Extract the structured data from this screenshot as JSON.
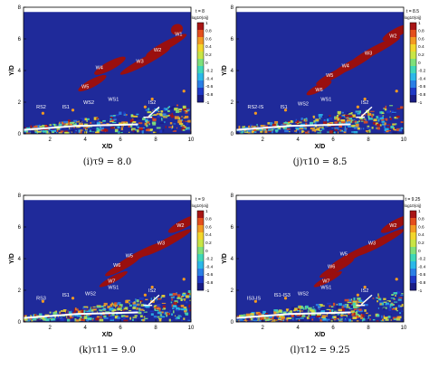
{
  "figure": {
    "panels": [
      {
        "caption": "(i)τ9 = 8.0",
        "time_label": "t = 8",
        "colorbar_title": "log10(σij)",
        "colorbar_ticks": [
          "1",
          "0.8",
          "0.6",
          "0.4",
          "0.2",
          "0",
          "-0.2",
          "-0.4",
          "-0.6",
          "-0.8",
          "-1"
        ],
        "xlabel": "X/D",
        "ylabel": "Y/D",
        "xticks": [
          "2",
          "4",
          "6",
          "8",
          "10"
        ],
        "yticks": [
          "0",
          "2",
          "4",
          "6",
          "8"
        ],
        "labels": [
          {
            "text": "W1",
            "x": 9.3,
            "y": 6.2
          },
          {
            "text": "W2",
            "x": 8.1,
            "y": 5.2
          },
          {
            "text": "W3",
            "x": 7.1,
            "y": 4.5
          },
          {
            "text": "W4",
            "x": 4.8,
            "y": 4.1
          },
          {
            "text": "W5",
            "x": 4.0,
            "y": 2.9
          },
          {
            "text": "RS2",
            "x": 1.5,
            "y": 1.6
          },
          {
            "text": "IS1",
            "x": 2.9,
            "y": 1.6
          },
          {
            "text": "WS2",
            "x": 4.2,
            "y": 1.9
          },
          {
            "text": "WS1",
            "x": 5.6,
            "y": 2.1
          },
          {
            "text": "IS2",
            "x": 7.8,
            "y": 1.9
          }
        ]
      },
      {
        "caption": "(j)τ10 = 8.5",
        "time_label": "t = 8.5",
        "colorbar_title": "log10(σij)",
        "colorbar_ticks": [
          "1",
          "0.8",
          "0.6",
          "0.4",
          "0.2",
          "0",
          "-0.2",
          "-0.4",
          "-0.6",
          "-0.8",
          "-1"
        ],
        "xlabel": "X/D",
        "ylabel": "Y/D",
        "xticks": [
          "2",
          "4",
          "6",
          "8",
          "10"
        ],
        "yticks": [
          "0",
          "2",
          "4",
          "6",
          "8"
        ],
        "labels": [
          {
            "text": "W2",
            "x": 9.4,
            "y": 6.1
          },
          {
            "text": "W3",
            "x": 8.0,
            "y": 5.0
          },
          {
            "text": "W4",
            "x": 6.7,
            "y": 4.2
          },
          {
            "text": "W5",
            "x": 5.8,
            "y": 3.6
          },
          {
            "text": "W6",
            "x": 5.2,
            "y": 2.7
          },
          {
            "text": "RS2-IS",
            "x": 1.6,
            "y": 1.6
          },
          {
            "text": "IS1",
            "x": 3.2,
            "y": 1.6
          },
          {
            "text": "WS2",
            "x": 4.3,
            "y": 1.8
          },
          {
            "text": "WS1",
            "x": 5.6,
            "y": 2.1
          },
          {
            "text": "IS2",
            "x": 7.8,
            "y": 1.9
          }
        ]
      },
      {
        "caption": "(k)τ11 = 9.0",
        "time_label": "t = 9",
        "colorbar_title": "log10(σij)",
        "colorbar_ticks": [
          "1",
          "0.8",
          "0.6",
          "0.4",
          "0.2",
          "0",
          "-0.2",
          "-0.4",
          "-0.6",
          "-0.8",
          "-1"
        ],
        "xlabel": "X/D",
        "ylabel": "Y/D",
        "xticks": [
          "2",
          "4",
          "6",
          "8",
          "10"
        ],
        "yticks": [
          "0",
          "2",
          "4",
          "6",
          "8"
        ],
        "labels": [
          {
            "text": "W2",
            "x": 9.4,
            "y": 6.0
          },
          {
            "text": "W3",
            "x": 8.3,
            "y": 4.9
          },
          {
            "text": "W5",
            "x": 6.5,
            "y": 4.1
          },
          {
            "text": "W6",
            "x": 5.8,
            "y": 3.5
          },
          {
            "text": "W7",
            "x": 5.5,
            "y": 2.5
          },
          {
            "text": "RS3",
            "x": 1.5,
            "y": 1.4
          },
          {
            "text": "IS1",
            "x": 2.9,
            "y": 1.6
          },
          {
            "text": "WS2",
            "x": 4.3,
            "y": 1.7
          },
          {
            "text": "WS1",
            "x": 5.6,
            "y": 2.1
          },
          {
            "text": "IS2",
            "x": 7.8,
            "y": 1.9
          }
        ]
      },
      {
        "caption": "(l)τ12 = 9.25",
        "time_label": "t = 9.25",
        "colorbar_title": "log10(σij)",
        "colorbar_ticks": [
          "1",
          "0.8",
          "0.6",
          "0.4",
          "0.2",
          "0",
          "-0.2",
          "-0.4",
          "-0.6",
          "-0.8",
          "-1"
        ],
        "xlabel": "X/D",
        "ylabel": "Y/D",
        "xticks": [
          "2",
          "4",
          "6",
          "8",
          "10"
        ],
        "yticks": [
          "0",
          "2",
          "4",
          "6",
          "8"
        ],
        "labels": [
          {
            "text": "W2",
            "x": 9.4,
            "y": 6.0
          },
          {
            "text": "W3",
            "x": 8.2,
            "y": 4.9
          },
          {
            "text": "W5",
            "x": 6.6,
            "y": 4.2
          },
          {
            "text": "W6",
            "x": 5.9,
            "y": 3.4
          },
          {
            "text": "W7",
            "x": 5.6,
            "y": 2.5
          },
          {
            "text": "IS3-IS",
            "x": 1.5,
            "y": 1.4
          },
          {
            "text": "IS1-IS3",
            "x": 3.1,
            "y": 1.6
          },
          {
            "text": "WS2",
            "x": 4.3,
            "y": 1.7
          },
          {
            "text": "WS1",
            "x": 5.6,
            "y": 2.1
          },
          {
            "text": "IS2",
            "x": 7.8,
            "y": 1.9
          }
        ]
      }
    ]
  },
  "chart_data": [
    {
      "type": "heatmap",
      "title": "",
      "xlabel": "X/D",
      "ylabel": "Y/D",
      "xlim": [
        0.5,
        10
      ],
      "ylim": [
        0,
        8
      ],
      "colorbar": {
        "title": "log10(σij)",
        "range": [
          -1,
          1
        ],
        "ticks": [
          1,
          0.8,
          0.6,
          0.4,
          0.2,
          0,
          -0.2,
          -0.4,
          -0.6,
          -0.8,
          -1
        ]
      },
      "time": 8,
      "tau": "τ9",
      "annotations": [
        "W1",
        "W2",
        "W3",
        "W4",
        "W5",
        "RS2",
        "IS1",
        "WS2",
        "WS1",
        "IS2"
      ]
    },
    {
      "type": "heatmap",
      "title": "",
      "xlabel": "X/D",
      "ylabel": "Y/D",
      "xlim": [
        0.5,
        10
      ],
      "ylim": [
        0,
        8
      ],
      "colorbar": {
        "title": "log10(σij)",
        "range": [
          -1,
          1
        ],
        "ticks": [
          1,
          0.8,
          0.6,
          0.4,
          0.2,
          0,
          -0.2,
          -0.4,
          -0.6,
          -0.8,
          -1
        ]
      },
      "time": 8.5,
      "tau": "τ10",
      "annotations": [
        "W2",
        "W3",
        "W4",
        "W5",
        "W6",
        "RS2-IS",
        "IS1",
        "WS2",
        "WS1",
        "IS2"
      ]
    },
    {
      "type": "heatmap",
      "title": "",
      "xlabel": "X/D",
      "ylabel": "Y/D",
      "xlim": [
        0.5,
        10
      ],
      "ylim": [
        0,
        8
      ],
      "colorbar": {
        "title": "log10(σij)",
        "range": [
          -1,
          1
        ],
        "ticks": [
          1,
          0.8,
          0.6,
          0.4,
          0.2,
          0,
          -0.2,
          -0.4,
          -0.6,
          -0.8,
          -1
        ]
      },
      "time": 9,
      "tau": "τ11",
      "annotations": [
        "W2",
        "W3",
        "W5",
        "W6",
        "W7",
        "RS3",
        "IS1",
        "WS2",
        "WS1",
        "IS2"
      ]
    },
    {
      "type": "heatmap",
      "title": "",
      "xlabel": "X/D",
      "ylabel": "Y/D",
      "xlim": [
        0.5,
        10
      ],
      "ylim": [
        0,
        8
      ],
      "colorbar": {
        "title": "log10(σij)",
        "range": [
          -1,
          1
        ],
        "ticks": [
          1,
          0.8,
          0.6,
          0.4,
          0.2,
          0,
          -0.2,
          -0.4,
          -0.6,
          -0.8,
          -1
        ]
      },
      "time": 9.25,
      "tau": "τ12",
      "annotations": [
        "W2",
        "W3",
        "W5",
        "W6",
        "W7",
        "IS3-IS",
        "IS1-IS3",
        "WS2",
        "WS1",
        "IS2"
      ]
    }
  ]
}
